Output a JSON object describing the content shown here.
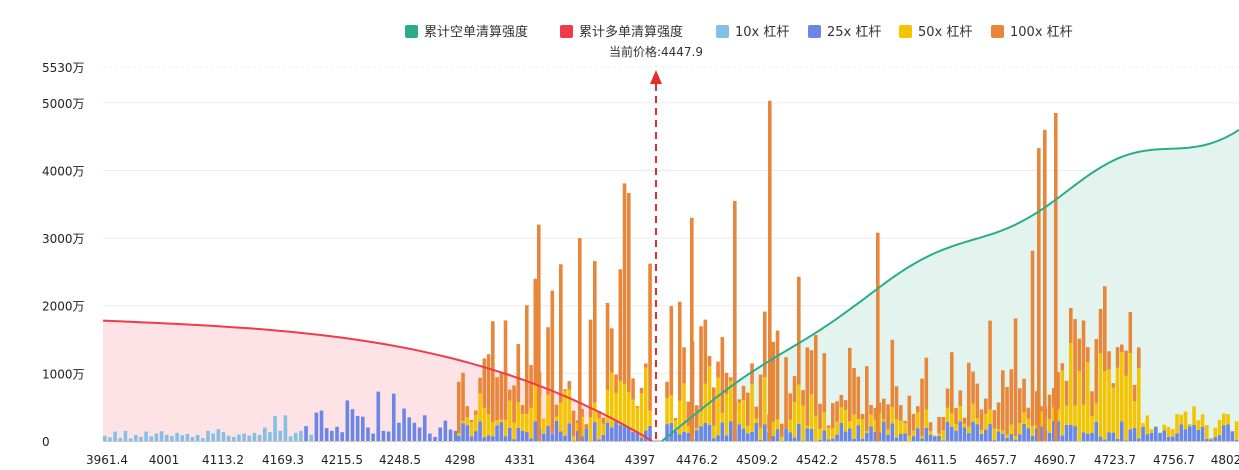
{
  "chart_data": {
    "type": "bar",
    "title": "",
    "xlabel": "",
    "ylabel": "",
    "ylim": [
      0,
      5530
    ],
    "y_unit": "万",
    "y_ticks": [
      "0",
      "1000万",
      "2000万",
      "3000万",
      "4000万",
      "5000万",
      "5530万"
    ],
    "y_tick_values": [
      0,
      1000,
      2000,
      3000,
      4000,
      5000,
      5530
    ],
    "x_ticks": [
      "3961.4",
      "4001",
      "4113.2",
      "4169.3",
      "4215.5",
      "4248.5",
      "4298",
      "4331",
      "4364",
      "4397",
      "4476.2",
      "4509.2",
      "4542.2",
      "4578.5",
      "4611.5",
      "4657.7",
      "4690.7",
      "4723.7",
      "4756.7",
      "4802"
    ],
    "current_price_label": "当前价格:4447.9",
    "legend": [
      {
        "name": "累计空单清算强度",
        "color": "#2bab8c"
      },
      {
        "name": "累计多单清算强度",
        "color": "#ef3b4a"
      },
      {
        "name": "10x 杠杆",
        "color": "#86bfe5"
      },
      {
        "name": "25x 杠杆",
        "color": "#6a86e6"
      },
      {
        "name": "50x 杠杆",
        "color": "#f5c400"
      },
      {
        "name": "100x 杠杆",
        "color": "#e8863a"
      }
    ],
    "colors": {
      "short_line": "#2bab8c",
      "short_fill": "#e3f4ef",
      "long_line": "#ef3b4a",
      "long_fill": "#fde3e6",
      "lev10": "#86bfe5",
      "lev25": "#6a86e6",
      "lev50": "#f5c400",
      "lev100": "#e8863a",
      "marker": "#e02f2f"
    },
    "bars": [
      {
        "x": 1,
        "lev": "10",
        "value": 80
      },
      {
        "x": 3,
        "lev": "10",
        "value": 55
      },
      {
        "x": 5,
        "lev": "10",
        "value": 140
      },
      {
        "x": 7,
        "lev": "10",
        "value": 45
      },
      {
        "x": 9,
        "lev": "10",
        "value": 150
      },
      {
        "x": 11,
        "lev": "10",
        "value": 40
      },
      {
        "x": 13,
        "lev": "10",
        "value": 90
      },
      {
        "x": 15,
        "lev": "10",
        "value": 60
      },
      {
        "x": 17,
        "lev": "10",
        "value": 140
      },
      {
        "x": 19,
        "lev": "10",
        "value": 70
      },
      {
        "x": 21,
        "lev": "10",
        "value": 110
      },
      {
        "x": 23,
        "lev": "10",
        "value": 145
      },
      {
        "x": 25,
        "lev": "10",
        "value": 90
      },
      {
        "x": 27,
        "lev": "10",
        "value": 75
      },
      {
        "x": 29,
        "lev": "10",
        "value": 120
      },
      {
        "x": 31,
        "lev": "10",
        "value": 85
      },
      {
        "x": 33,
        "lev": "10",
        "value": 105
      },
      {
        "x": 35,
        "lev": "10",
        "value": 60
      },
      {
        "x": 37,
        "lev": "10",
        "value": 90
      },
      {
        "x": 39,
        "lev": "10",
        "value": 45
      },
      {
        "x": 41,
        "lev": "10",
        "value": 150
      },
      {
        "x": 43,
        "lev": "10",
        "value": 110
      },
      {
        "x": 45,
        "lev": "10",
        "value": 175
      },
      {
        "x": 47,
        "lev": "10",
        "value": 130
      },
      {
        "x": 49,
        "lev": "10",
        "value": 80
      },
      {
        "x": 51,
        "lev": "10",
        "value": 60
      },
      {
        "x": 53,
        "lev": "10",
        "value": 95
      },
      {
        "x": 55,
        "lev": "10",
        "value": 110
      },
      {
        "x": 57,
        "lev": "10",
        "value": 80
      },
      {
        "x": 59,
        "lev": "10",
        "value": 120
      },
      {
        "x": 61,
        "lev": "10",
        "value": 90
      },
      {
        "x": 63,
        "lev": "10",
        "value": 200
      },
      {
        "x": 65,
        "lev": "10",
        "value": 130
      },
      {
        "x": 67,
        "lev": "10",
        "value": 370
      },
      {
        "x": 69,
        "lev": "10",
        "value": 150
      },
      {
        "x": 71,
        "lev": "10",
        "value": 380
      },
      {
        "x": 73,
        "lev": "10",
        "value": 70
      },
      {
        "x": 75,
        "lev": "10",
        "value": 120
      },
      {
        "x": 77,
        "lev": "10",
        "value": 150
      },
      {
        "x": 79,
        "lev": "25",
        "value": 220
      },
      {
        "x": 81,
        "lev": "10",
        "value": 95
      },
      {
        "x": 83,
        "lev": "25",
        "value": 420
      },
      {
        "x": 85,
        "lev": "25",
        "value": 450
      },
      {
        "x": 87,
        "lev": "25",
        "value": 190
      },
      {
        "x": 89,
        "lev": "25",
        "value": 150
      },
      {
        "x": 91,
        "lev": "25",
        "value": 210
      },
      {
        "x": 93,
        "lev": "25",
        "value": 130
      },
      {
        "x": 95,
        "lev": "25",
        "value": 600
      },
      {
        "x": 97,
        "lev": "25",
        "value": 470
      },
      {
        "x": 99,
        "lev": "25",
        "value": 370
      },
      {
        "x": 101,
        "lev": "25",
        "value": 360
      },
      {
        "x": 103,
        "lev": "25",
        "value": 200
      },
      {
        "x": 105,
        "lev": "25",
        "value": 110
      },
      {
        "x": 107,
        "lev": "25",
        "value": 730
      },
      {
        "x": 109,
        "lev": "25",
        "value": 150
      },
      {
        "x": 111,
        "lev": "25",
        "value": 140
      },
      {
        "x": 113,
        "lev": "25",
        "value": 700
      },
      {
        "x": 115,
        "lev": "25",
        "value": 270
      },
      {
        "x": 117,
        "lev": "25",
        "value": 480
      },
      {
        "x": 119,
        "lev": "25",
        "value": 350
      },
      {
        "x": 121,
        "lev": "25",
        "value": 270
      },
      {
        "x": 123,
        "lev": "25",
        "value": 200
      },
      {
        "x": 125,
        "lev": "25",
        "value": 380
      },
      {
        "x": 127,
        "lev": "25",
        "value": 110
      },
      {
        "x": 129,
        "lev": "25",
        "value": 60
      },
      {
        "x": 131,
        "lev": "25",
        "value": 200
      },
      {
        "x": 133,
        "lev": "25",
        "value": 300
      },
      {
        "x": 135,
        "lev": "25",
        "value": 170
      },
      {
        "x": 137,
        "lev": "25",
        "value": 150
      },
      {
        "x": 139,
        "lev": "25",
        "value": 230
      },
      {
        "x": 141,
        "lev": "25",
        "value": 300
      },
      {
        "x": 143,
        "lev": "25",
        "value": 180
      },
      {
        "x": 145,
        "lev": "25",
        "value": 120
      },
      {
        "x": 147,
        "lev": "25",
        "value": 200
      },
      {
        "x": 149,
        "lev": "25",
        "value": 210
      },
      {
        "x": 151,
        "lev": "25",
        "value": 250
      },
      {
        "x": 153,
        "lev": "25",
        "value": 80
      },
      {
        "x": 155,
        "lev": "25",
        "value": 130
      },
      {
        "x": 157,
        "lev": "25",
        "value": 60
      },
      {
        "x": 159,
        "lev": "25",
        "value": 90
      },
      {
        "x": 161,
        "lev": "25",
        "value": 80
      },
      {
        "x": 163,
        "lev": "25",
        "value": 100
      },
      {
        "x": 165,
        "lev": "25",
        "value": 30
      },
      {
        "x": 167,
        "lev": "25",
        "value": 250
      },
      {
        "x": 169,
        "lev": "25",
        "value": 340
      },
      {
        "x": 171,
        "lev": "25",
        "value": 190
      },
      {
        "x": 173,
        "lev": "25",
        "value": 120
      },
      {
        "x": 175,
        "lev": "25",
        "value": 80
      },
      {
        "x": 177,
        "lev": "25",
        "value": 430
      },
      {
        "x": 179,
        "lev": "25",
        "value": 270
      },
      {
        "x": 181,
        "lev": "25",
        "value": 310
      },
      {
        "x": 183,
        "lev": "25",
        "value": 140
      },
      {
        "x": 185,
        "lev": "25",
        "value": 400
      },
      {
        "x": 187,
        "lev": "25",
        "value": 180
      },
      {
        "x": 189,
        "lev": "25",
        "value": 330
      },
      {
        "x": 191,
        "lev": "25",
        "value": 390
      },
      {
        "x": 193,
        "lev": "25",
        "value": 300
      },
      {
        "x": 195,
        "lev": "25",
        "value": 170
      },
      {
        "x": 197,
        "lev": "25",
        "value": 130
      },
      {
        "x": 199,
        "lev": "25",
        "value": 380
      },
      {
        "x": 201,
        "lev": "25",
        "value": 750
      },
      {
        "x": 203,
        "lev": "25",
        "value": 470
      },
      {
        "x": 205,
        "lev": "25",
        "value": 230
      },
      {
        "x": 207,
        "lev": "25",
        "value": 260
      },
      {
        "x": 209,
        "lev": "25",
        "value": 280
      },
      {
        "x": 211,
        "lev": "25",
        "value": 150
      },
      {
        "x": 213,
        "lev": "25",
        "value": 200
      },
      {
        "x": 215,
        "lev": "25",
        "value": 120
      },
      {
        "x": 217,
        "lev": "25",
        "value": 130
      },
      {
        "x": 219,
        "lev": "25",
        "value": 90
      },
      {
        "x": 221,
        "lev": "25",
        "value": 160
      },
      {
        "x": 223,
        "lev": "25",
        "value": 80
      },
      {
        "x": 225,
        "lev": "25",
        "value": 210
      },
      {
        "x": 227,
        "lev": "25",
        "value": 120
      },
      {
        "x": 229,
        "lev": "25",
        "value": 200
      },
      {
        "x": 231,
        "lev": "25",
        "value": 110
      }
    ],
    "notes": "Bar positions are indexed on a 0-1000 category scale across the price axis; remaining bars generated procedurally to approximate the dense distribution."
  }
}
